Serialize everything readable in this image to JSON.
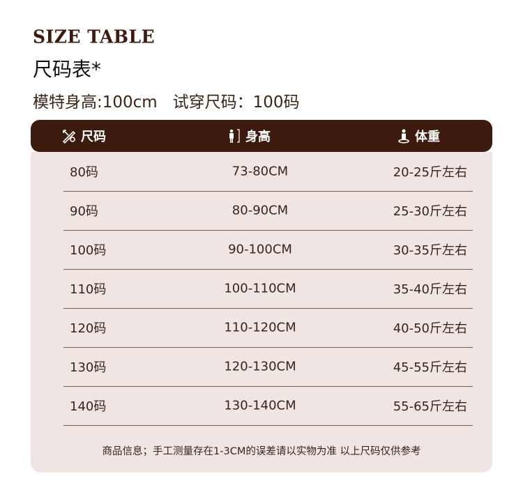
{
  "title_en": "SIZE TABLE",
  "title_cn": "尺码表*",
  "model_info": "模特身高:100cm   试穿尺码：100码",
  "colors": {
    "header": "#3d1a0e",
    "panel": "#efe6e3",
    "text": "#3a2418"
  },
  "table": {
    "headers": [
      {
        "label": "尺码",
        "icon": "ruler-pencil-icon"
      },
      {
        "label": "身高",
        "icon": "person-height-icon"
      },
      {
        "label": "体重",
        "icon": "person-scale-icon"
      }
    ],
    "rows": [
      [
        "80码",
        "73-80CM",
        "20-25斤左右"
      ],
      [
        "90码",
        "80-90CM",
        "25-30斤左右"
      ],
      [
        "100码",
        "90-100CM",
        "30-35斤左右"
      ],
      [
        "110码",
        "100-110CM",
        "35-40斤左右"
      ],
      [
        "120码",
        "110-120CM",
        "40-50斤左右"
      ],
      [
        "130码",
        "120-130CM",
        "45-55斤左右"
      ],
      [
        "140码",
        "130-140CM",
        "55-65斤左右"
      ]
    ]
  },
  "footer": "商品信息；手工测量存在1-3CM的误差请以实物为准 以上尺码仅供参考"
}
